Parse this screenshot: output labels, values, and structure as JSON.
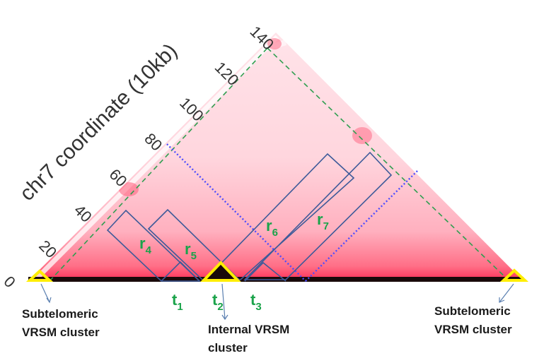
{
  "axis": {
    "label": "chr7 coordinate (10kb)",
    "ticks": [
      "0",
      "20",
      "40",
      "60",
      "80",
      "100",
      "120",
      "140"
    ]
  },
  "regions": [
    {
      "id": "r4",
      "base": "r",
      "sub": "4"
    },
    {
      "id": "r5",
      "base": "r",
      "sub": "5"
    },
    {
      "id": "r6",
      "base": "r",
      "sub": "6"
    },
    {
      "id": "r7",
      "base": "r",
      "sub": "7"
    }
  ],
  "tads": [
    {
      "id": "t1",
      "base": "t",
      "sub": "1"
    },
    {
      "id": "t2",
      "base": "t",
      "sub": "2"
    },
    {
      "id": "t3",
      "base": "t",
      "sub": "3"
    }
  ],
  "annotations": {
    "left_cluster": [
      "Subtelomeric",
      "VRSM cluster"
    ],
    "internal_cluster": [
      "Internal VRSM",
      "cluster"
    ],
    "right_cluster": [
      "Subtelomeric",
      "VRSM cluster"
    ]
  },
  "colors": {
    "heatmap_low": "#ffe9ee",
    "heatmap_high": "#ff3358",
    "box_stroke": "#3d5a99",
    "green_dash": "#2e9e4f",
    "blue_dot": "#4b4bff",
    "marker_yellow": "#ffee00",
    "label_green": "#1aa34a"
  }
}
